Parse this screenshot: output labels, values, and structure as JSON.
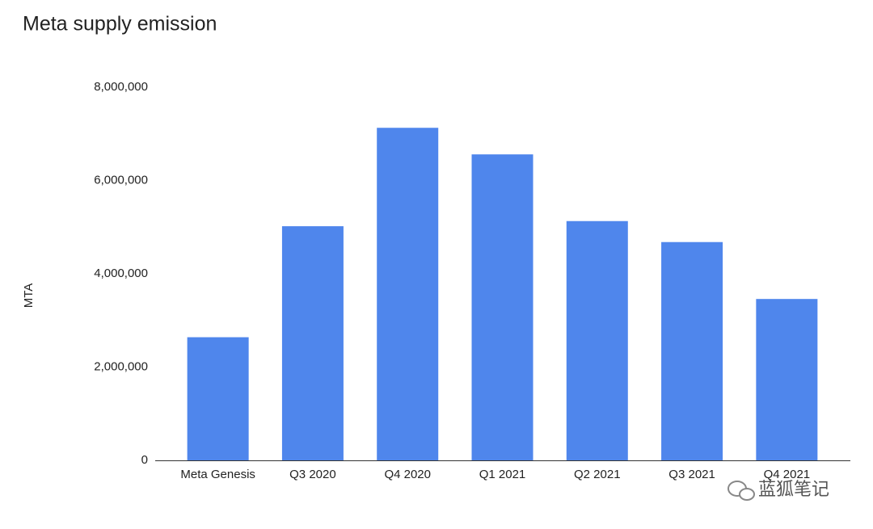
{
  "chart_data": {
    "type": "bar",
    "title": "Meta supply emission",
    "y_label": "MTA",
    "categories": [
      "Meta Genesis",
      "Q3 2020",
      "Q4 2020",
      "Q1 2021",
      "Q2 2021",
      "Q3 2021",
      "Q4 2021"
    ],
    "values": [
      2640000,
      5020000,
      7130000,
      6560000,
      5130000,
      4680000,
      3460000
    ],
    "color": "#4f86ec",
    "ylim": [
      0,
      8000000
    ],
    "yticks": [
      0,
      {
        "value": 2000000,
        "label": "2,000,000"
      },
      {
        "value": 4000000,
        "label": "4,000,000"
      },
      {
        "value": 6000000,
        "label": "6,000,000"
      },
      {
        "value": 8000000,
        "label": "8,000,000"
      }
    ],
    "grid": false
  },
  "watermark": "蓝狐笔记"
}
